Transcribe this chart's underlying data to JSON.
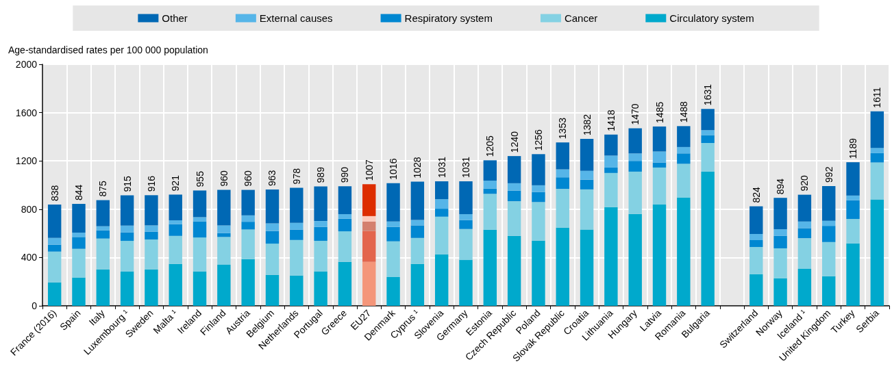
{
  "chart_data": {
    "type": "bar",
    "stacked": true,
    "ylabel": "Age-standardised rates per 100 000 population",
    "categories": [
      "France (2016)",
      "Spain",
      "Italy",
      "Luxembourg ¹",
      "Sweden",
      "Malta ¹",
      "Ireland",
      "Finland",
      "Austria",
      "Belgium",
      "Netherlands",
      "Portugal",
      "Greece",
      "EU27",
      "Denmark",
      "Cyprus ¹",
      "Slovenia",
      "Germany",
      "Estonia",
      "Czech Republic",
      "Poland",
      "Slovak Republic",
      "Croatia",
      "Lithuania",
      "Hungary",
      "Latvia",
      "Romania",
      "Bulgaria",
      null,
      "Switzerland",
      "Norway",
      "Iceland ¹",
      "United Kingdom",
      "Turkey",
      "Serbia"
    ],
    "series": [
      {
        "name": "Circulatory system",
        "color": "#00a9cc",
        "colors": [
          "#00a9cc",
          "#00a9cc",
          "#00a9cc",
          "#00a9cc",
          "#00a9cc",
          "#00a9cc",
          "#00a9cc",
          "#00a9cc",
          "#00a9cc",
          "#00a9cc",
          "#00a9cc",
          "#00a9cc",
          "#00a9cc",
          "#f4967a",
          "#00a9cc",
          "#00a9cc",
          "#00a9cc",
          "#00a9cc",
          "#00a9cc",
          "#00a9cc",
          "#00a9cc",
          "#00a9cc",
          "#00a9cc",
          "#00a9cc",
          "#00a9cc",
          "#00a9cc",
          "#00a9cc",
          "#00a9cc",
          null,
          "#00a9cc",
          "#00a9cc",
          "#00a9cc",
          "#00a9cc",
          "#00a9cc",
          "#00a9cc"
        ],
        "values": [
          194,
          234,
          302,
          285,
          302,
          347,
          285,
          340,
          387,
          257,
          251,
          285,
          364,
          364,
          238,
          347,
          426,
          379,
          630,
          579,
          540,
          647,
          632,
          817,
          760,
          838,
          896,
          1111,
          null,
          261,
          228,
          306,
          245,
          517,
          881
        ]
      },
      {
        "name": "Cancer",
        "color": "#84d1e3",
        "colors": [
          "#84d1e3",
          "#84d1e3",
          "#84d1e3",
          "#84d1e3",
          "#84d1e3",
          "#84d1e3",
          "#84d1e3",
          "#84d1e3",
          "#84d1e3",
          "#84d1e3",
          "#84d1e3",
          "#84d1e3",
          "#84d1e3",
          "#e3654d",
          "#84d1e3",
          "#84d1e3",
          "#84d1e3",
          "#84d1e3",
          "#84d1e3",
          "#84d1e3",
          "#84d1e3",
          "#84d1e3",
          "#84d1e3",
          "#84d1e3",
          "#84d1e3",
          "#84d1e3",
          "#84d1e3",
          "#84d1e3",
          null,
          "#84d1e3",
          "#84d1e3",
          "#84d1e3",
          "#84d1e3",
          "#84d1e3",
          "#84d1e3"
        ],
        "values": [
          255,
          238,
          255,
          253,
          247,
          232,
          281,
          230,
          245,
          258,
          294,
          253,
          253,
          255,
          296,
          215,
          312,
          257,
          297,
          287,
          319,
          321,
          332,
          283,
          351,
          307,
          280,
          238,
          null,
          226,
          248,
          254,
          283,
          202,
          306
        ]
      },
      {
        "name": "Respiratory system",
        "color": "#0087d1",
        "colors": [
          "#0087d1",
          "#0087d1",
          "#0087d1",
          "#0087d1",
          "#0087d1",
          "#0087d1",
          "#0087d1",
          "#0087d1",
          "#0087d1",
          "#0087d1",
          "#0087d1",
          "#0087d1",
          "#0087d1",
          "#d4806e",
          "#0087d1",
          "#0087d1",
          "#0087d1",
          "#0087d1",
          "#0087d1",
          "#0087d1",
          "#0087d1",
          "#0087d1",
          "#0087d1",
          "#0087d1",
          "#0087d1",
          "#0087d1",
          "#0087d1",
          "#0087d1",
          null,
          "#0087d1",
          "#0087d1",
          "#0087d1",
          "#0087d1",
          "#0087d1",
          "#0087d1"
        ],
        "values": [
          57,
          98,
          68,
          70,
          64,
          97,
          132,
          32,
          64,
          104,
          85,
          115,
          104,
          79,
          119,
          104,
          66,
          74,
          43,
          87,
          83,
          96,
          80,
          45,
          89,
          40,
          86,
          64,
          null,
          57,
          103,
          83,
          134,
          155,
          77
        ]
      },
      {
        "name": "External causes",
        "color": "#56b5e8",
        "colors": [
          "#56b5e8",
          "#56b5e8",
          "#56b5e8",
          "#56b5e8",
          "#56b5e8",
          "#56b5e8",
          "#56b5e8",
          "#56b5e8",
          "#56b5e8",
          "#56b5e8",
          "#56b5e8",
          "#56b5e8",
          "#56b5e8",
          "#fdcabb",
          "#56b5e8",
          "#56b5e8",
          "#56b5e8",
          "#56b5e8",
          "#56b5e8",
          "#56b5e8",
          "#56b5e8",
          "#56b5e8",
          "#56b5e8",
          "#56b5e8",
          "#56b5e8",
          "#56b5e8",
          "#56b5e8",
          "#56b5e8",
          null,
          "#56b5e8",
          "#56b5e8",
          "#56b5e8",
          "#56b5e8",
          "#56b5e8",
          "#56b5e8"
        ],
        "values": [
          56,
          36,
          34,
          56,
          53,
          32,
          36,
          64,
          53,
          64,
          57,
          49,
          38,
          45,
          45,
          45,
          79,
          49,
          66,
          62,
          56,
          66,
          73,
          99,
          62,
          93,
          53,
          42,
          null,
          51,
          55,
          55,
          42,
          39,
          44
        ]
      },
      {
        "name": "Other",
        "color": "#0068b4",
        "colors": [
          "#0068b4",
          "#0068b4",
          "#0068b4",
          "#0068b4",
          "#0068b4",
          "#0068b4",
          "#0068b4",
          "#0068b4",
          "#0068b4",
          "#0068b4",
          "#0068b4",
          "#0068b4",
          "#0068b4",
          "#dd2d00",
          "#0068b4",
          "#0068b4",
          "#0068b4",
          "#0068b4",
          "#0068b4",
          "#0068b4",
          "#0068b4",
          "#0068b4",
          "#0068b4",
          "#0068b4",
          "#0068b4",
          "#0068b4",
          "#0068b4",
          "#0068b4",
          null,
          "#0068b4",
          "#0068b4",
          "#0068b4",
          "#0068b4",
          "#0068b4",
          "#0068b4"
        ],
        "values": [
          276,
          238,
          216,
          251,
          250,
          213,
          221,
          294,
          211,
          280,
          291,
          287,
          231,
          264,
          318,
          317,
          148,
          272,
          169,
          225,
          258,
          223,
          265,
          174,
          208,
          207,
          173,
          176,
          null,
          229,
          260,
          222,
          288,
          276,
          303
        ]
      }
    ],
    "totals": [
      "838",
      "844",
      "875",
      "915",
      "916",
      "921",
      "955",
      "960",
      "960",
      "963",
      "978",
      "989",
      "990",
      "1007",
      "1016",
      "1028",
      "1031",
      "1031",
      "1205",
      "1240",
      "1256",
      "1353",
      "1382",
      "1418",
      "1470",
      "1485",
      "1488",
      "1631",
      null,
      "824",
      "894",
      "920",
      "992",
      "1189",
      "1611"
    ],
    "ylim": [
      0,
      2000
    ],
    "yticks": [
      0,
      400,
      800,
      1200,
      1600,
      2000
    ],
    "grid": true,
    "legend": "top"
  }
}
